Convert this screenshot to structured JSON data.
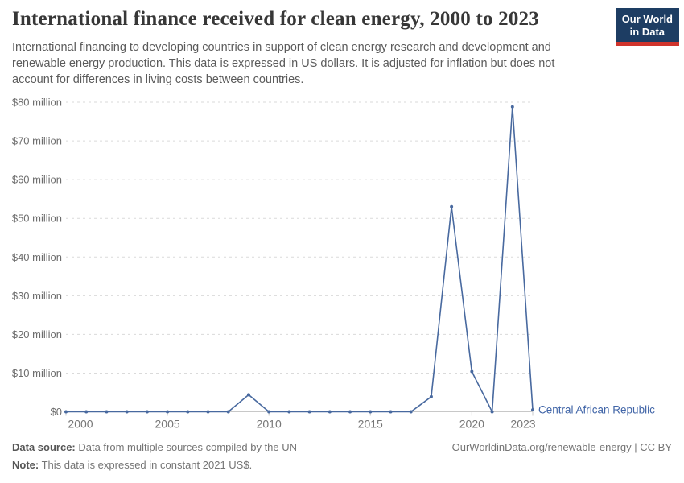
{
  "header": {
    "title": "International finance received for clean energy, 2000 to 2023",
    "subtitle": "International financing to developing countries in support of clean energy research and development and renewable energy production. This data is expressed in US dollars. It is adjusted for inflation but does not account for differences in living costs between countries.",
    "logo_line1": "Our World",
    "logo_line2": "in Data"
  },
  "chart_data": {
    "type": "line",
    "title": "International finance received for clean energy, 2000 to 2023",
    "entity_label": "Central African Republic",
    "unit": "constant 2021 US$, millions",
    "x": [
      2000,
      2001,
      2002,
      2003,
      2004,
      2005,
      2006,
      2007,
      2008,
      2009,
      2010,
      2011,
      2012,
      2013,
      2014,
      2015,
      2016,
      2017,
      2018,
      2019,
      2020,
      2021,
      2022,
      2023
    ],
    "series": [
      {
        "name": "Central African Republic",
        "values": [
          0,
          0,
          0,
          0,
          0,
          0,
          0,
          0,
          0,
          4.4,
          0,
          0,
          0,
          0,
          0,
          0,
          0,
          0,
          3.9,
          53,
          10.4,
          0,
          78.8,
          0.5
        ]
      }
    ],
    "ylim": [
      0,
      80
    ],
    "yticks": [
      {
        "value": 0,
        "label": "$0"
      },
      {
        "value": 10,
        "label": "$10 million"
      },
      {
        "value": 20,
        "label": "$20 million"
      },
      {
        "value": 30,
        "label": "$30 million"
      },
      {
        "value": 40,
        "label": "$40 million"
      },
      {
        "value": 50,
        "label": "$50 million"
      },
      {
        "value": 60,
        "label": "$60 million"
      },
      {
        "value": 70,
        "label": "$70 million"
      },
      {
        "value": 80,
        "label": "$80 million"
      }
    ],
    "xticks": [
      2000,
      2005,
      2010,
      2015,
      2020,
      2023
    ],
    "grid": "horizontal-dashed",
    "legend_position": "end-of-line-label",
    "colors": {
      "line": "#48699f",
      "grid": "#dadada",
      "axis": "#c8c8c8",
      "y_tick_text": "#6d6d6d",
      "x_tick_text": "#767676",
      "entity_text": "#4266a8"
    }
  },
  "footer": {
    "source_label": "Data source:",
    "source_text": " Data from multiple sources compiled by the UN",
    "note_label": "Note:",
    "note_text": " This data is expressed in constant 2021 US$.",
    "link": "OurWorldinData.org/renewable-energy | CC BY"
  }
}
